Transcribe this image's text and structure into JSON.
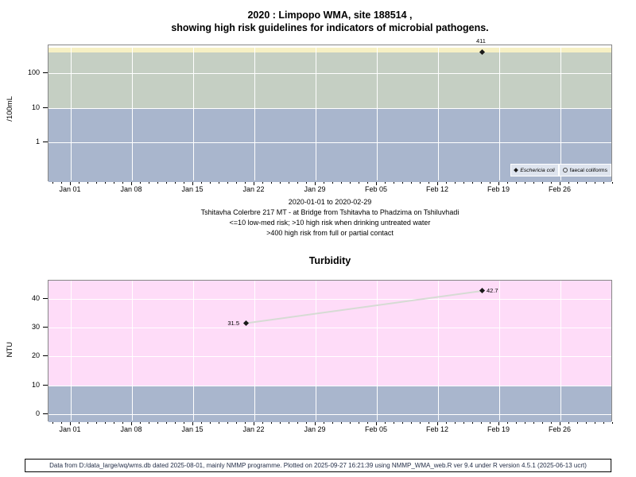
{
  "page": {
    "title_line1": "2020 : Limpopo WMA, site 188514 ,",
    "title_line2": "showing high risk guidelines for indicators of microbial pathogens.",
    "subtitle_lines": [
      "2020-01-01 to 2020-02-29",
      "Tshitavha Colerbre 217 MT - at Bridge from Tshitavha to Phadzima on Tshiluvhadi",
      "<=10 low-med risk; >10 high risk when drinking untreated water",
      ">400 high risk from full or partial contact"
    ],
    "footer": "Data from D:/data_large/wq/wms.db dated 2025-08-01, mainly NMMP programme. Plotted on 2025-09-27 16:21:39 using NMMP_WMA_web.R ver 9.4 under R version 4.5.1 (2025-06-13 ucrt)"
  },
  "colors": {
    "band_high_risk_yellow": "#f6f0c4",
    "band_med_green": "#c5cfc3",
    "band_low_blue": "#a9b6cd",
    "band_pink": "#fedcf8",
    "grid_white": "#ffffff",
    "legend_bg": "#dee4ee",
    "trend_line": "#d6dbd4",
    "marker": "#1a1a1a",
    "footer_text": "#1f2a44"
  },
  "chart_data": [
    {
      "id": "microbial-pathogens",
      "type": "scatter",
      "title": "2020 : Limpopo WMA, site 188514 , showing high risk guidelines for indicators of microbial pathogens.",
      "ylabel": "/100mL",
      "yscale": "log10",
      "yticks": [
        1,
        10,
        100
      ],
      "ylim_approx": [
        0.07,
        690
      ],
      "grid": true,
      "xticks": [
        {
          "day": 0,
          "label": "Jan 01"
        },
        {
          "day": 7,
          "label": "Jan 08"
        },
        {
          "day": 14,
          "label": "Jan 15"
        },
        {
          "day": 21,
          "label": "Jan 22"
        },
        {
          "day": 28,
          "label": "Jan 29"
        },
        {
          "day": 35,
          "label": "Feb 05"
        },
        {
          "day": 42,
          "label": "Feb 12"
        },
        {
          "day": 49,
          "label": "Feb 19"
        },
        {
          "day": 56,
          "label": "Feb 26"
        }
      ],
      "bands": [
        {
          "name": "high-risk-contact-above-400",
          "from": 400,
          "to": 560,
          "color_key": "band_high_risk_yellow"
        },
        {
          "name": "high-risk-drinking-10-400",
          "from": 10,
          "to": 400,
          "color_key": "band_med_green"
        },
        {
          "name": "low-med-risk-below-10",
          "from": 0.07,
          "to": 10,
          "color_key": "band_low_blue"
        }
      ],
      "series": [
        {
          "name": "Eschericia coli",
          "marker": "filled-diamond",
          "points": [
            {
              "day": 47,
              "date": "Feb 17",
              "value": 411,
              "label": "411",
              "label_side": "above"
            }
          ]
        },
        {
          "name": "faecal coliforms",
          "marker": "open-circle",
          "points": []
        }
      ],
      "legend_position": "bottom-right"
    },
    {
      "id": "turbidity",
      "type": "line",
      "title": "Turbidity",
      "ylabel": "NTU",
      "yscale": "linear",
      "yticks": [
        0,
        10,
        20,
        30,
        40
      ],
      "ylim_approx": [
        -2.8,
        46.3
      ],
      "grid": true,
      "xticks": [
        {
          "day": 0,
          "label": "Jan 01"
        },
        {
          "day": 7,
          "label": "Jan 08"
        },
        {
          "day": 14,
          "label": "Jan 15"
        },
        {
          "day": 21,
          "label": "Jan 22"
        },
        {
          "day": 28,
          "label": "Jan 29"
        },
        {
          "day": 35,
          "label": "Feb 05"
        },
        {
          "day": 42,
          "label": "Feb 12"
        },
        {
          "day": 49,
          "label": "Feb 19"
        },
        {
          "day": 56,
          "label": "Feb 26"
        }
      ],
      "bands": [
        {
          "name": "above-10-ntu",
          "from": 10,
          "to": 46.3,
          "color_key": "band_pink"
        },
        {
          "name": "below-10-ntu",
          "from": -2.8,
          "to": 10,
          "color_key": "band_low_blue"
        }
      ],
      "series": [
        {
          "name": "Turbidity",
          "marker": "filled-diamond",
          "line": true,
          "points": [
            {
              "day": 20,
              "date": "Jan 21",
              "value": 31.5,
              "label": "31.5",
              "label_side": "left"
            },
            {
              "day": 47,
              "date": "Feb 17",
              "value": 42.7,
              "label": "42.7",
              "label_side": "right"
            }
          ]
        }
      ]
    }
  ]
}
